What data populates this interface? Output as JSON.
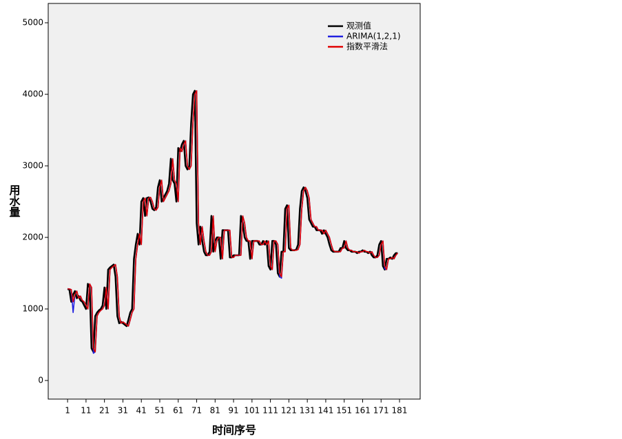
{
  "chart_data": {
    "type": "line",
    "x_label": "时间序号",
    "y_label": "用水量",
    "legend": "upper right",
    "xlim": [
      -9.5,
      192.2
    ],
    "ylim": [
      -260,
      5270
    ],
    "xticks": [
      1,
      11,
      21,
      31,
      41,
      51,
      61,
      71,
      81,
      91,
      101,
      111,
      121,
      131,
      141,
      151,
      161,
      171,
      181
    ],
    "yticks": [
      0,
      1000,
      2000,
      3000,
      4000,
      5000
    ],
    "x": [
      1,
      2,
      3,
      4,
      5,
      6,
      7,
      8,
      9,
      10,
      11,
      12,
      13,
      14,
      15,
      16,
      17,
      18,
      19,
      20,
      21,
      22,
      23,
      24,
      25,
      26,
      27,
      28,
      29,
      30,
      31,
      32,
      33,
      34,
      35,
      36,
      37,
      38,
      39,
      40,
      41,
      42,
      43,
      44,
      45,
      46,
      47,
      48,
      49,
      50,
      51,
      52,
      53,
      54,
      55,
      56,
      57,
      58,
      59,
      60,
      61,
      62,
      63,
      64,
      65,
      66,
      67,
      68,
      69,
      70,
      71,
      72,
      73,
      74,
      75,
      76,
      77,
      78,
      79,
      80,
      81,
      82,
      83,
      84,
      85,
      86,
      87,
      88,
      89,
      90,
      91,
      92,
      93,
      94,
      95,
      96,
      97,
      98,
      99,
      100,
      101,
      102,
      103,
      104,
      105,
      106,
      107,
      108,
      109,
      110,
      111,
      112,
      113,
      114,
      115,
      116,
      117,
      118,
      119,
      120,
      121,
      122,
      123,
      124,
      125,
      126,
      127,
      128,
      129,
      130,
      131,
      132,
      133,
      134,
      135,
      136,
      137,
      138,
      139,
      140,
      141,
      142,
      143,
      144,
      145,
      146,
      147,
      148,
      149,
      150,
      151,
      152,
      153,
      154,
      155,
      156,
      157,
      158,
      159,
      160,
      161,
      162,
      163,
      164,
      165,
      166,
      167,
      168,
      169,
      170,
      171,
      172,
      173,
      174,
      175,
      176,
      177,
      178,
      179,
      180
    ],
    "series": [
      {
        "name": "观测值",
        "color": "#000000",
        "values": [
          1280,
          1270,
          1100,
          1200,
          1250,
          1150,
          1180,
          1120,
          1100,
          1050,
          1000,
          1350,
          1300,
          450,
          400,
          900,
          950,
          980,
          1000,
          1050,
          1300,
          1000,
          1550,
          1580,
          1600,
          1620,
          1450,
          900,
          800,
          820,
          800,
          780,
          760,
          850,
          950,
          1000,
          1700,
          1900,
          2050,
          1900,
          2500,
          2550,
          2300,
          2550,
          2560,
          2500,
          2400,
          2380,
          2420,
          2700,
          2800,
          2500,
          2550,
          2600,
          2650,
          2750,
          3100,
          2800,
          2750,
          2500,
          3250,
          3200,
          3300,
          3350,
          3000,
          2950,
          3000,
          3600,
          4000,
          4050,
          2200,
          1900,
          2150,
          1950,
          1800,
          1750,
          1750,
          1800,
          2300,
          1800,
          1950,
          2000,
          2000,
          1700,
          2100,
          2100,
          2100,
          2100,
          1720,
          1720,
          1750,
          1750,
          1750,
          1750,
          2300,
          2200,
          2000,
          1950,
          1950,
          1700,
          1950,
          1950,
          1950,
          1950,
          1900,
          1900,
          1950,
          1900,
          1950,
          1600,
          1550,
          1950,
          1950,
          1900,
          1500,
          1450,
          1800,
          1800,
          2400,
          2450,
          1850,
          1820,
          1820,
          1820,
          1830,
          1900,
          2400,
          2650,
          2700,
          2650,
          2550,
          2250,
          2200,
          2150,
          2150,
          2100,
          2100,
          2100,
          2050,
          2100,
          2050,
          2000,
          1900,
          1820,
          1800,
          1800,
          1800,
          1800,
          1850,
          1850,
          1950,
          1850,
          1820,
          1820,
          1800,
          1800,
          1800,
          1780,
          1800,
          1800,
          1820,
          1800,
          1800,
          1780,
          1800,
          1750,
          1720,
          1720,
          1750,
          1900,
          1950,
          1600,
          1550,
          1700,
          1700,
          1720,
          1700,
          1750,
          1780,
          1780
        ]
      },
      {
        "name": "ARIMA(1,2,1)",
        "color": "#2020e0",
        "values": [
          1280,
          1280,
          1270,
          950,
          1200,
          1250,
          1150,
          1180,
          1120,
          1100,
          1050,
          1000,
          1350,
          1300,
          380,
          400,
          900,
          950,
          980,
          1000,
          1050,
          1300,
          1000,
          1550,
          1580,
          1600,
          1620,
          1450,
          900,
          800,
          820,
          800,
          780,
          760,
          850,
          950,
          1000,
          1700,
          1900,
          2050,
          1900,
          2500,
          2550,
          2300,
          2550,
          2560,
          2500,
          2400,
          2380,
          2420,
          2700,
          2800,
          2500,
          2550,
          2600,
          2650,
          2750,
          3100,
          2800,
          2750,
          2500,
          3250,
          3200,
          3300,
          3350,
          3000,
          2950,
          3000,
          3600,
          4000,
          4050,
          2200,
          1900,
          2150,
          1950,
          1800,
          1750,
          1750,
          1800,
          2300,
          1800,
          1950,
          2000,
          2000,
          1700,
          2100,
          2100,
          2100,
          2100,
          1720,
          1720,
          1750,
          1750,
          1750,
          1750,
          2300,
          2200,
          2000,
          1950,
          1950,
          1700,
          1950,
          1950,
          1950,
          1950,
          1900,
          1900,
          1950,
          1900,
          1950,
          1600,
          1550,
          1950,
          1950,
          1900,
          1450,
          1430,
          1800,
          1800,
          2400,
          2450,
          1850,
          1820,
          1820,
          1820,
          1830,
          1900,
          2400,
          2650,
          2700,
          2650,
          2550,
          2250,
          2200,
          2150,
          2150,
          2100,
          2100,
          2100,
          2050,
          2100,
          2050,
          2000,
          1900,
          1820,
          1800,
          1800,
          1800,
          1800,
          1850,
          1850,
          1950,
          1850,
          1820,
          1820,
          1800,
          1800,
          1800,
          1780,
          1800,
          1800,
          1820,
          1800,
          1800,
          1780,
          1800,
          1750,
          1720,
          1720,
          1750,
          1900,
          1950,
          1560,
          1550,
          1700,
          1700,
          1720,
          1700,
          1750,
          1780
        ]
      },
      {
        "name": "指数平滑法",
        "color": "#e00000",
        "values": [
          1280,
          1280,
          1270,
          1100,
          1200,
          1250,
          1150,
          1180,
          1120,
          1100,
          1050,
          1000,
          1350,
          1300,
          450,
          400,
          900,
          950,
          980,
          1000,
          1050,
          1300,
          1000,
          1550,
          1580,
          1600,
          1620,
          1450,
          900,
          800,
          820,
          800,
          780,
          760,
          850,
          950,
          1000,
          1700,
          1900,
          2050,
          1900,
          2500,
          2550,
          2300,
          2550,
          2560,
          2500,
          2400,
          2380,
          2420,
          2700,
          2800,
          2500,
          2550,
          2600,
          2650,
          2750,
          3100,
          2800,
          2750,
          2500,
          3250,
          3200,
          3300,
          3350,
          3000,
          2950,
          3000,
          3600,
          4000,
          4050,
          2200,
          1900,
          2150,
          1950,
          1800,
          1750,
          1750,
          1800,
          2300,
          1800,
          1950,
          2000,
          2000,
          1700,
          2100,
          2100,
          2100,
          2100,
          1720,
          1720,
          1750,
          1750,
          1750,
          1750,
          2300,
          2200,
          2000,
          1950,
          1950,
          1700,
          1950,
          1950,
          1950,
          1950,
          1900,
          1900,
          1950,
          1900,
          1950,
          1600,
          1550,
          1950,
          1950,
          1900,
          1500,
          1450,
          1800,
          1800,
          2400,
          2450,
          1850,
          1820,
          1820,
          1820,
          1830,
          1900,
          2400,
          2650,
          2700,
          2650,
          2550,
          2250,
          2200,
          2150,
          2150,
          2100,
          2100,
          2100,
          2050,
          2100,
          2050,
          2000,
          1900,
          1820,
          1800,
          1800,
          1800,
          1800,
          1850,
          1850,
          1950,
          1850,
          1820,
          1820,
          1800,
          1800,
          1800,
          1780,
          1800,
          1800,
          1820,
          1800,
          1800,
          1780,
          1800,
          1750,
          1720,
          1720,
          1750,
          1900,
          1950,
          1600,
          1550,
          1700,
          1700,
          1720,
          1700,
          1750,
          1780
        ]
      }
    ]
  }
}
